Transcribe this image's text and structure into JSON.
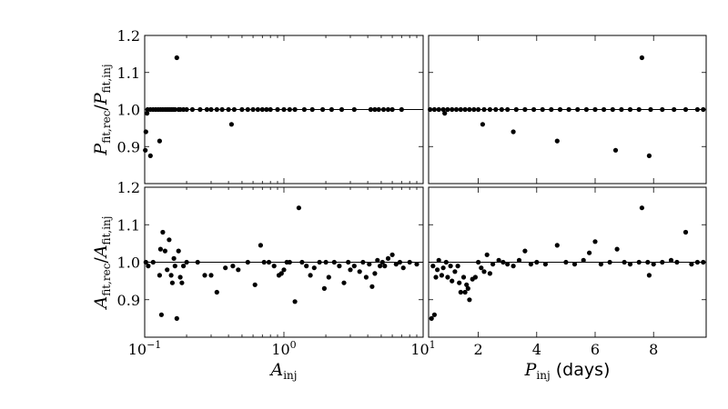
{
  "chart_data": [
    {
      "id": "top-left",
      "type": "scatter",
      "xscale": "log",
      "xlim": [
        0.1,
        10
      ],
      "ylim": [
        0.8,
        1.2
      ],
      "xticks": [
        {
          "v": 0.1,
          "label": "10",
          "exp": "−1"
        },
        {
          "v": 1,
          "label": "10",
          "exp": "0"
        },
        {
          "v": 10,
          "label": "10",
          "exp": "1"
        }
      ],
      "yticks": [
        {
          "v": 0.9,
          "label": "0.9"
        },
        {
          "v": 1.0,
          "label": "1.0"
        },
        {
          "v": 1.1,
          "label": "1.1"
        },
        {
          "v": 1.2,
          "label": "1.2"
        }
      ],
      "show_xlabels": false,
      "show_ylabels": true,
      "ylabel": {
        "main": "P",
        "sub": "fit,rec",
        "sep": "/",
        "main2": "P",
        "sub2": "fit,inj"
      },
      "reference_line": 1.0,
      "points": [
        [
          0.102,
          0.94
        ],
        [
          0.104,
          0.99
        ],
        [
          0.101,
          0.89
        ],
        [
          0.11,
          0.875
        ],
        [
          0.128,
          0.915
        ],
        [
          0.17,
          1.14
        ],
        [
          0.42,
          0.96
        ],
        [
          0.105,
          1.0
        ],
        [
          0.11,
          1.0
        ],
        [
          0.115,
          1.0
        ],
        [
          0.12,
          1.0
        ],
        [
          0.125,
          1.0
        ],
        [
          0.13,
          1.0
        ],
        [
          0.135,
          1.0
        ],
        [
          0.14,
          1.0
        ],
        [
          0.145,
          1.0
        ],
        [
          0.15,
          1.0
        ],
        [
          0.155,
          1.0
        ],
        [
          0.16,
          1.0
        ],
        [
          0.165,
          1.0
        ],
        [
          0.175,
          1.0
        ],
        [
          0.18,
          1.0
        ],
        [
          0.19,
          1.0
        ],
        [
          0.2,
          1.0
        ],
        [
          0.22,
          1.0
        ],
        [
          0.25,
          1.0
        ],
        [
          0.28,
          1.0
        ],
        [
          0.3,
          1.0
        ],
        [
          0.33,
          1.0
        ],
        [
          0.36,
          1.0
        ],
        [
          0.4,
          1.0
        ],
        [
          0.44,
          1.0
        ],
        [
          0.5,
          1.0
        ],
        [
          0.55,
          1.0
        ],
        [
          0.6,
          1.0
        ],
        [
          0.65,
          1.0
        ],
        [
          0.7,
          1.0
        ],
        [
          0.75,
          1.0
        ],
        [
          0.8,
          1.0
        ],
        [
          0.9,
          1.0
        ],
        [
          1.0,
          1.0
        ],
        [
          1.1,
          1.0
        ],
        [
          1.2,
          1.0
        ],
        [
          1.4,
          1.0
        ],
        [
          1.6,
          1.0
        ],
        [
          1.9,
          1.0
        ],
        [
          2.2,
          1.0
        ],
        [
          2.6,
          1.0
        ],
        [
          3.2,
          1.0
        ],
        [
          4.2,
          1.0
        ],
        [
          4.5,
          1.0
        ],
        [
          4.8,
          1.0
        ],
        [
          5.2,
          1.0
        ],
        [
          5.6,
          1.0
        ],
        [
          6.0,
          1.0
        ],
        [
          7.0,
          1.0
        ]
      ]
    },
    {
      "id": "top-right",
      "type": "scatter",
      "xscale": "linear",
      "xlim": [
        0.3,
        9.8
      ],
      "ylim": [
        0.8,
        1.2
      ],
      "xticks": [
        {
          "v": 2,
          "label": "2"
        },
        {
          "v": 4,
          "label": "4"
        },
        {
          "v": 6,
          "label": "6"
        },
        {
          "v": 8,
          "label": "8"
        }
      ],
      "yticks": [
        {
          "v": 0.9,
          "label": "0.9"
        },
        {
          "v": 1.0,
          "label": "1.0"
        },
        {
          "v": 1.1,
          "label": "1.1"
        },
        {
          "v": 1.2,
          "label": "1.2"
        }
      ],
      "show_xlabels": false,
      "show_ylabels": false,
      "reference_line": 1.0,
      "points": [
        [
          0.85,
          0.99
        ],
        [
          2.15,
          0.96
        ],
        [
          3.2,
          0.94
        ],
        [
          4.7,
          0.915
        ],
        [
          6.7,
          0.89
        ],
        [
          7.85,
          0.875
        ],
        [
          7.6,
          1.14
        ],
        [
          0.35,
          1.0
        ],
        [
          0.5,
          1.0
        ],
        [
          0.65,
          1.0
        ],
        [
          0.8,
          1.0
        ],
        [
          0.95,
          1.0
        ],
        [
          1.1,
          1.0
        ],
        [
          1.25,
          1.0
        ],
        [
          1.4,
          1.0
        ],
        [
          1.55,
          1.0
        ],
        [
          1.7,
          1.0
        ],
        [
          1.85,
          1.0
        ],
        [
          2.0,
          1.0
        ],
        [
          2.2,
          1.0
        ],
        [
          2.4,
          1.0
        ],
        [
          2.6,
          1.0
        ],
        [
          2.8,
          1.0
        ],
        [
          3.0,
          1.0
        ],
        [
          3.3,
          1.0
        ],
        [
          3.6,
          1.0
        ],
        [
          3.9,
          1.0
        ],
        [
          4.2,
          1.0
        ],
        [
          4.5,
          1.0
        ],
        [
          4.8,
          1.0
        ],
        [
          5.1,
          1.0
        ],
        [
          5.4,
          1.0
        ],
        [
          5.7,
          1.0
        ],
        [
          6.0,
          1.0
        ],
        [
          6.3,
          1.0
        ],
        [
          6.6,
          1.0
        ],
        [
          6.9,
          1.0
        ],
        [
          7.2,
          1.0
        ],
        [
          7.5,
          1.0
        ],
        [
          7.9,
          1.0
        ],
        [
          8.3,
          1.0
        ],
        [
          8.7,
          1.0
        ],
        [
          9.1,
          1.0
        ],
        [
          9.5,
          1.0
        ],
        [
          9.7,
          1.0
        ]
      ]
    },
    {
      "id": "bottom-left",
      "type": "scatter",
      "xscale": "log",
      "xlim": [
        0.1,
        10
      ],
      "ylim": [
        0.8,
        1.2
      ],
      "xticks": [
        {
          "v": 0.1,
          "label": "10",
          "exp": "−1"
        },
        {
          "v": 1,
          "label": "10",
          "exp": "0"
        },
        {
          "v": 10,
          "label": "10",
          "exp": "1"
        }
      ],
      "yticks": [
        {
          "v": 0.9,
          "label": "0.9"
        },
        {
          "v": 1.0,
          "label": "1.0"
        },
        {
          "v": 1.1,
          "label": "1.1"
        },
        {
          "v": 1.2,
          "label": "1.2"
        }
      ],
      "show_xlabels": true,
      "show_ylabels": true,
      "xlabel": {
        "main": "A",
        "sub": "inj"
      },
      "ylabel": {
        "main": "A",
        "sub": "fit,rec",
        "sep": "/",
        "main2": "A",
        "sub2": "fit,inj"
      },
      "reference_line": 1.0,
      "points": [
        [
          0.102,
          1.0
        ],
        [
          0.106,
          0.99
        ],
        [
          0.115,
          1.0
        ],
        [
          0.128,
          0.965
        ],
        [
          0.13,
          1.035
        ],
        [
          0.132,
          0.86
        ],
        [
          0.135,
          1.08
        ],
        [
          0.14,
          1.03
        ],
        [
          0.145,
          0.98
        ],
        [
          0.15,
          1.06
        ],
        [
          0.155,
          0.965
        ],
        [
          0.158,
          0.945
        ],
        [
          0.162,
          1.01
        ],
        [
          0.165,
          0.99
        ],
        [
          0.17,
          0.85
        ],
        [
          0.175,
          1.03
        ],
        [
          0.18,
          0.96
        ],
        [
          0.185,
          0.945
        ],
        [
          0.19,
          0.99
        ],
        [
          0.2,
          1.0
        ],
        [
          0.24,
          1.0
        ],
        [
          0.27,
          0.965
        ],
        [
          0.3,
          0.965
        ],
        [
          0.33,
          0.92
        ],
        [
          0.38,
          0.985
        ],
        [
          0.43,
          0.99
        ],
        [
          0.47,
          0.98
        ],
        [
          0.55,
          1.0
        ],
        [
          0.62,
          0.94
        ],
        [
          0.68,
          1.045
        ],
        [
          0.72,
          1.0
        ],
        [
          0.78,
          1.0
        ],
        [
          0.85,
          0.99
        ],
        [
          0.92,
          0.965
        ],
        [
          0.96,
          0.97
        ],
        [
          1.0,
          0.98
        ],
        [
          1.05,
          1.0
        ],
        [
          1.1,
          1.0
        ],
        [
          1.2,
          0.895
        ],
        [
          1.28,
          1.145
        ],
        [
          1.35,
          1.0
        ],
        [
          1.45,
          0.99
        ],
        [
          1.55,
          0.965
        ],
        [
          1.65,
          0.985
        ],
        [
          1.8,
          1.0
        ],
        [
          1.95,
          0.93
        ],
        [
          2.0,
          1.0
        ],
        [
          2.1,
          0.96
        ],
        [
          2.3,
          1.0
        ],
        [
          2.5,
          0.99
        ],
        [
          2.7,
          0.945
        ],
        [
          2.9,
          1.0
        ],
        [
          3.0,
          0.98
        ],
        [
          3.2,
          0.99
        ],
        [
          3.5,
          0.975
        ],
        [
          3.7,
          1.0
        ],
        [
          3.9,
          0.96
        ],
        [
          4.1,
          0.995
        ],
        [
          4.3,
          0.935
        ],
        [
          4.5,
          0.97
        ],
        [
          4.7,
          1.005
        ],
        [
          4.9,
          0.99
        ],
        [
          5.1,
          1.0
        ],
        [
          5.3,
          0.99
        ],
        [
          5.6,
          1.01
        ],
        [
          6.0,
          1.02
        ],
        [
          6.4,
          0.995
        ],
        [
          6.8,
          1.0
        ],
        [
          7.2,
          0.985
        ],
        [
          8.0,
          1.0
        ],
        [
          9.0,
          0.995
        ]
      ]
    },
    {
      "id": "bottom-right",
      "type": "scatter",
      "xscale": "linear",
      "xlim": [
        0.3,
        9.8
      ],
      "ylim": [
        0.8,
        1.2
      ],
      "xticks": [
        {
          "v": 2,
          "label": "2"
        },
        {
          "v": 4,
          "label": "4"
        },
        {
          "v": 6,
          "label": "6"
        },
        {
          "v": 8,
          "label": "8"
        }
      ],
      "yticks": [
        {
          "v": 0.9,
          "label": "0.9"
        },
        {
          "v": 1.0,
          "label": "1.0"
        },
        {
          "v": 1.1,
          "label": "1.1"
        },
        {
          "v": 1.2,
          "label": "1.2"
        }
      ],
      "show_xlabels": true,
      "show_ylabels": false,
      "xlabel": {
        "main": "P",
        "sub": "inj",
        "suffix": " (days)"
      },
      "reference_line": 1.0,
      "points": [
        [
          0.4,
          0.85
        ],
        [
          0.5,
          0.86
        ],
        [
          0.45,
          0.99
        ],
        [
          0.55,
          0.96
        ],
        [
          0.6,
          0.98
        ],
        [
          0.65,
          1.005
        ],
        [
          0.75,
          0.965
        ],
        [
          0.8,
          0.985
        ],
        [
          0.9,
          1.0
        ],
        [
          0.95,
          0.96
        ],
        [
          1.05,
          0.99
        ],
        [
          1.1,
          0.95
        ],
        [
          1.2,
          0.975
        ],
        [
          1.3,
          0.99
        ],
        [
          1.35,
          0.945
        ],
        [
          1.4,
          0.92
        ],
        [
          1.5,
          0.96
        ],
        [
          1.55,
          0.92
        ],
        [
          1.6,
          0.94
        ],
        [
          1.65,
          0.93
        ],
        [
          1.7,
          0.9
        ],
        [
          1.8,
          0.955
        ],
        [
          1.9,
          0.96
        ],
        [
          2.0,
          1.0
        ],
        [
          2.1,
          0.985
        ],
        [
          2.2,
          0.975
        ],
        [
          2.3,
          1.02
        ],
        [
          2.4,
          0.97
        ],
        [
          2.5,
          0.995
        ],
        [
          2.7,
          1.005
        ],
        [
          2.85,
          1.0
        ],
        [
          3.0,
          0.995
        ],
        [
          3.2,
          0.99
        ],
        [
          3.4,
          1.005
        ],
        [
          3.6,
          1.03
        ],
        [
          3.8,
          0.995
        ],
        [
          4.0,
          1.0
        ],
        [
          4.3,
          0.995
        ],
        [
          4.7,
          1.045
        ],
        [
          5.0,
          1.0
        ],
        [
          5.3,
          0.995
        ],
        [
          5.6,
          1.005
        ],
        [
          5.8,
          1.025
        ],
        [
          6.0,
          1.055
        ],
        [
          6.2,
          0.995
        ],
        [
          6.5,
          1.0
        ],
        [
          6.75,
          1.035
        ],
        [
          7.0,
          1.0
        ],
        [
          7.2,
          0.995
        ],
        [
          7.5,
          1.0
        ],
        [
          7.6,
          1.145
        ],
        [
          7.8,
          1.0
        ],
        [
          7.85,
          0.965
        ],
        [
          8.0,
          0.995
        ],
        [
          8.3,
          1.0
        ],
        [
          8.6,
          1.005
        ],
        [
          8.8,
          1.0
        ],
        [
          9.1,
          1.08
        ],
        [
          9.3,
          0.995
        ],
        [
          9.5,
          1.0
        ],
        [
          9.7,
          1.0
        ]
      ]
    }
  ]
}
